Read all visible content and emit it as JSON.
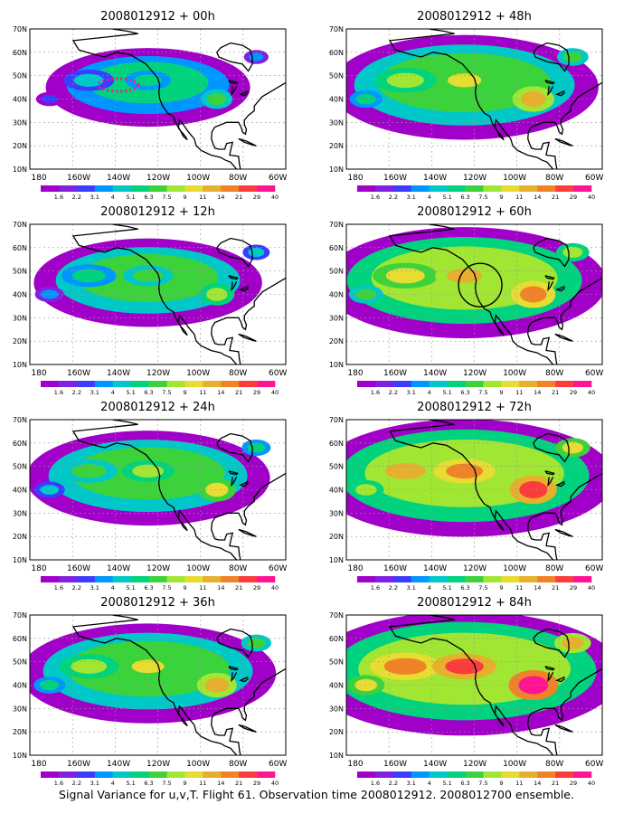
{
  "figure": {
    "caption": "Signal Variance for u,v,T. Flight 61. Observation time 2008012912. 2008012700 ensemble."
  },
  "axes": {
    "lat_labels": [
      "10N",
      "20N",
      "30N",
      "40N",
      "50N",
      "60N",
      "70N"
    ],
    "lon_labels": [
      "180",
      "160W",
      "140W",
      "120W",
      "100W",
      "80W",
      "60W"
    ]
  },
  "colorbar": {
    "labels": [
      "1.6",
      "2.2",
      "3.1",
      "4",
      "5.1",
      "6.3",
      "7.5",
      "9",
      "11",
      "14",
      "21",
      "29",
      "40"
    ],
    "colors": [
      "#a000c8",
      "#8020e0",
      "#3c3cff",
      "#0096ff",
      "#00c8c8",
      "#00d27d",
      "#3cd23c",
      "#a0e632",
      "#e6dc32",
      "#e6af2d",
      "#f08228",
      "#fa3c3c",
      "#ff1493"
    ]
  },
  "panels": [
    {
      "title": "2008012912 + 00h",
      "lead": "00h",
      "level": 0.3,
      "marker": "ellipse-dotted"
    },
    {
      "title": "2008012912 + 48h",
      "lead": "48h",
      "level": 0.62,
      "marker": ""
    },
    {
      "title": "2008012912 + 12h",
      "lead": "12h",
      "level": 0.42,
      "marker": ""
    },
    {
      "title": "2008012912 + 60h",
      "lead": "60h",
      "level": 0.7,
      "marker": "circle"
    },
    {
      "title": "2008012912 + 24h",
      "lead": "24h",
      "level": 0.5,
      "marker": ""
    },
    {
      "title": "2008012912 + 72h",
      "lead": "72h",
      "level": 0.78,
      "marker": ""
    },
    {
      "title": "2008012912 + 36h",
      "lead": "36h",
      "level": 0.56,
      "marker": ""
    },
    {
      "title": "2008012912 + 84h",
      "lead": "84h",
      "level": 0.86,
      "marker": ""
    }
  ]
}
